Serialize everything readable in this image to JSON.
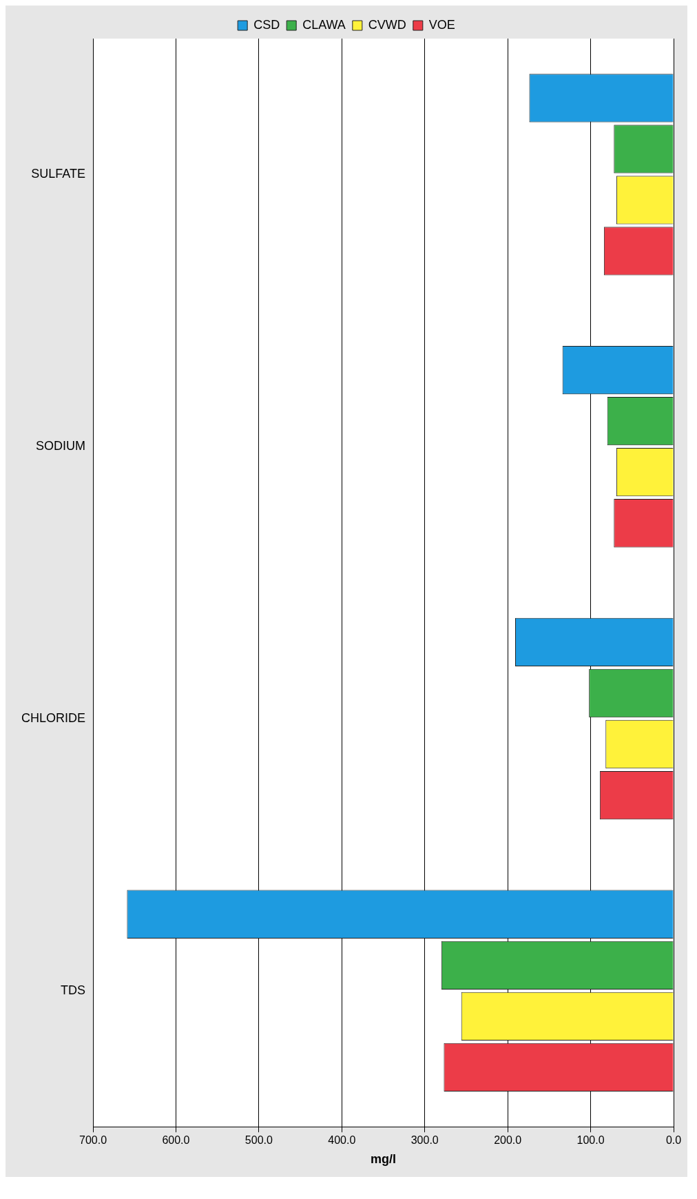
{
  "chart_data": {
    "type": "bar",
    "orientation": "horizontal",
    "xlabel": "mg/l",
    "categories": [
      "SULFATE",
      "SODIUM",
      "CHLORIDE",
      "TDS"
    ],
    "series": [
      {
        "name": "CSD",
        "color": "#1e9be0",
        "values": [
          174,
          134,
          191,
          659
        ]
      },
      {
        "name": "CLAWA",
        "color": "#3cb04a",
        "values": [
          72,
          80,
          102,
          280
        ]
      },
      {
        "name": "CVWD",
        "color": "#fff23a",
        "values": [
          69,
          69,
          82,
          256
        ]
      },
      {
        "name": "VOE",
        "color": "#ec3c48",
        "values": [
          84,
          72,
          89,
          277
        ]
      }
    ],
    "xlim": [
      700,
      0
    ],
    "xticks": [
      {
        "value": 700,
        "label": "700.0"
      },
      {
        "value": 600,
        "label": "600.0"
      },
      {
        "value": 500,
        "label": "500.0"
      },
      {
        "value": 400,
        "label": "400.0"
      },
      {
        "value": 300,
        "label": "300.0"
      },
      {
        "value": 200,
        "label": "200.0"
      },
      {
        "value": 100,
        "label": "100.0"
      },
      {
        "value": 0,
        "label": "0.0"
      }
    ],
    "grid": "x",
    "legend": "top"
  }
}
